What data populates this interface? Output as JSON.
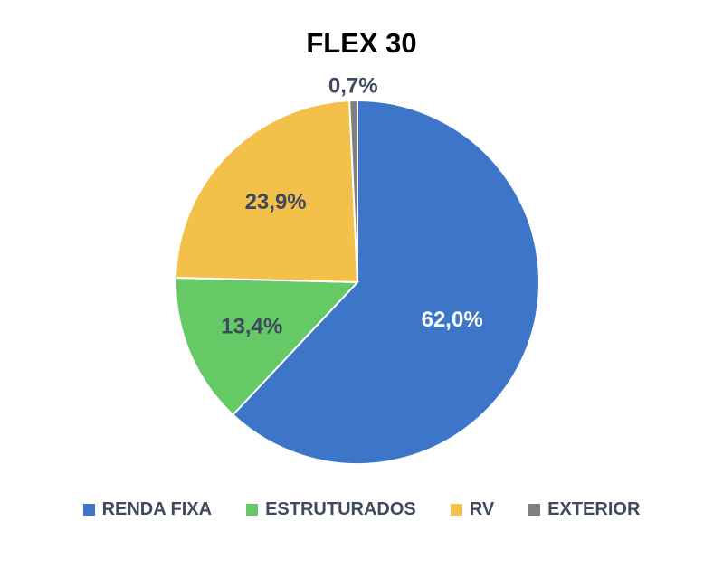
{
  "chart_data": {
    "type": "pie",
    "title": "FLEX 30",
    "legend_position": "bottom",
    "start_angle_deg": 0,
    "direction": "clockwise",
    "series": [
      {
        "name": "",
        "slices": [
          {
            "label": "RENDA FIXA",
            "value": 62.0,
            "display": "62,0%",
            "color": "#3d76c9",
            "label_color": "#ffffff"
          },
          {
            "label": "ESTRUTURADOS",
            "value": 13.4,
            "display": "13,4%",
            "color": "#65c965",
            "label_color": "#404a5e"
          },
          {
            "label": "RV",
            "value": 23.9,
            "display": "23,9%",
            "color": "#f3c14a",
            "label_color": "#404a5e"
          },
          {
            "label": "EXTERIOR",
            "value": 0.7,
            "display": "0,7%",
            "color": "#808080",
            "label_color": "#404a5e"
          }
        ]
      }
    ]
  }
}
